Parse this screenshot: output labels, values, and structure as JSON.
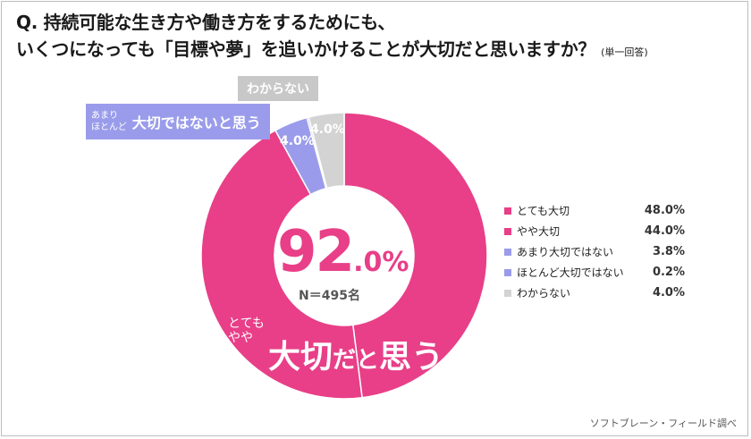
{
  "question": {
    "line1": "Q.  持続可能な生き方や働き方をするためにも、",
    "line2": "いくつになっても「目標や夢」を追いかけることが大切だと思いますか？",
    "note": "(単一回答)"
  },
  "chart_data": {
    "type": "pie",
    "categories": [
      "とても大切",
      "やや大切",
      "あまり大切ではない",
      "ほとんど大切ではない",
      "わからない"
    ],
    "values": [
      48.0,
      44.0,
      3.8,
      0.2,
      4.0
    ],
    "value_labels": [
      "48.0%",
      "44.0%",
      "3.8%",
      "0.2%",
      "4.0%"
    ],
    "colors": [
      "#e83f88",
      "#e83f88",
      "#9a9ceb",
      "#9a9ceb",
      "#d3d3d3"
    ],
    "group_labels": [
      {
        "text": "4.0%"
      },
      {
        "text": "4.0%"
      }
    ],
    "legend_position": "right"
  },
  "callouts": {
    "negative": {
      "sub1": "あまり",
      "sub2": "ほとんど",
      "main": "大切ではないと思う"
    },
    "unknown": {
      "main": "わからない"
    },
    "positive": {
      "sub1": "とても",
      "sub2": "やや",
      "main1": "大切",
      "main2": "だと",
      "main3": "思う"
    }
  },
  "center": {
    "num": "92",
    "dec": ".0%",
    "n": "N＝495名"
  },
  "source": "ソフトブレーン・フィールド調べ"
}
